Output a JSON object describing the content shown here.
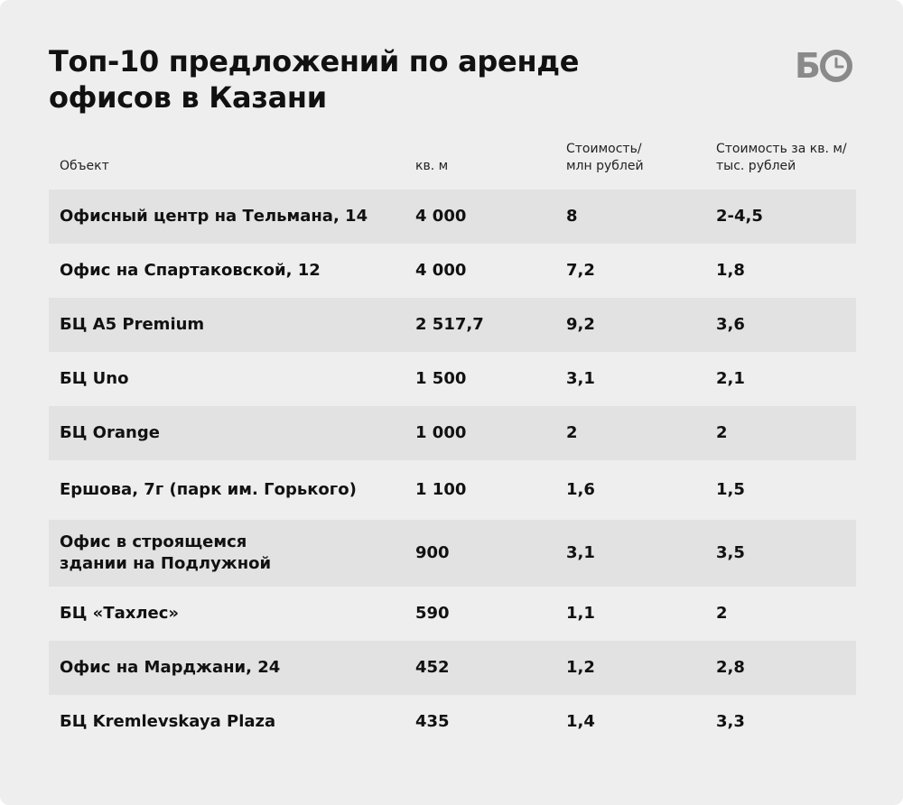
{
  "title": "Топ-10 предложений по аренде офисов в Казани",
  "logo": {
    "letter": "Б",
    "icon": "clock-o-icon"
  },
  "columns": {
    "object": "Объект",
    "area": "кв. м",
    "cost": "Стоимость/\nмлн рублей",
    "cost_per_sqm": "Стоимость за кв. м/\nтыс. рублей"
  },
  "rows": [
    {
      "object": "Офисный центр на Тельмана, 14",
      "area": "4 000",
      "cost": "8",
      "cost_per_sqm": "2-4,5"
    },
    {
      "object": "Офис на Спартаковской, 12",
      "area": "4 000",
      "cost": "7,2",
      "cost_per_sqm": "1,8"
    },
    {
      "object": "БЦ A5 Premium",
      "area": "2 517,7",
      "cost": "9,2",
      "cost_per_sqm": "3,6"
    },
    {
      "object": "БЦ Uno",
      "area": "1 500",
      "cost": "3,1",
      "cost_per_sqm": "2,1"
    },
    {
      "object": "БЦ Orange",
      "area": "1 000",
      "cost": "2",
      "cost_per_sqm": "2"
    },
    {
      "object": "Ершова, 7г (парк им. Горького)",
      "area": "1 100",
      "cost": "1,6",
      "cost_per_sqm": "1,5"
    },
    {
      "object": "Офис в строящемся\nздании на Подлужной",
      "area": "900",
      "cost": "3,1",
      "cost_per_sqm": "3,5"
    },
    {
      "object": "БЦ «Тахлес»",
      "area": "590",
      "cost": "1,1",
      "cost_per_sqm": "2"
    },
    {
      "object": "Офис на Марджани, 24",
      "area": "452",
      "cost": "1,2",
      "cost_per_sqm": "2,8"
    },
    {
      "object": "БЦ Kremlevskaya Plaza",
      "area": "435",
      "cost": "1,4",
      "cost_per_sqm": "3,3"
    }
  ]
}
